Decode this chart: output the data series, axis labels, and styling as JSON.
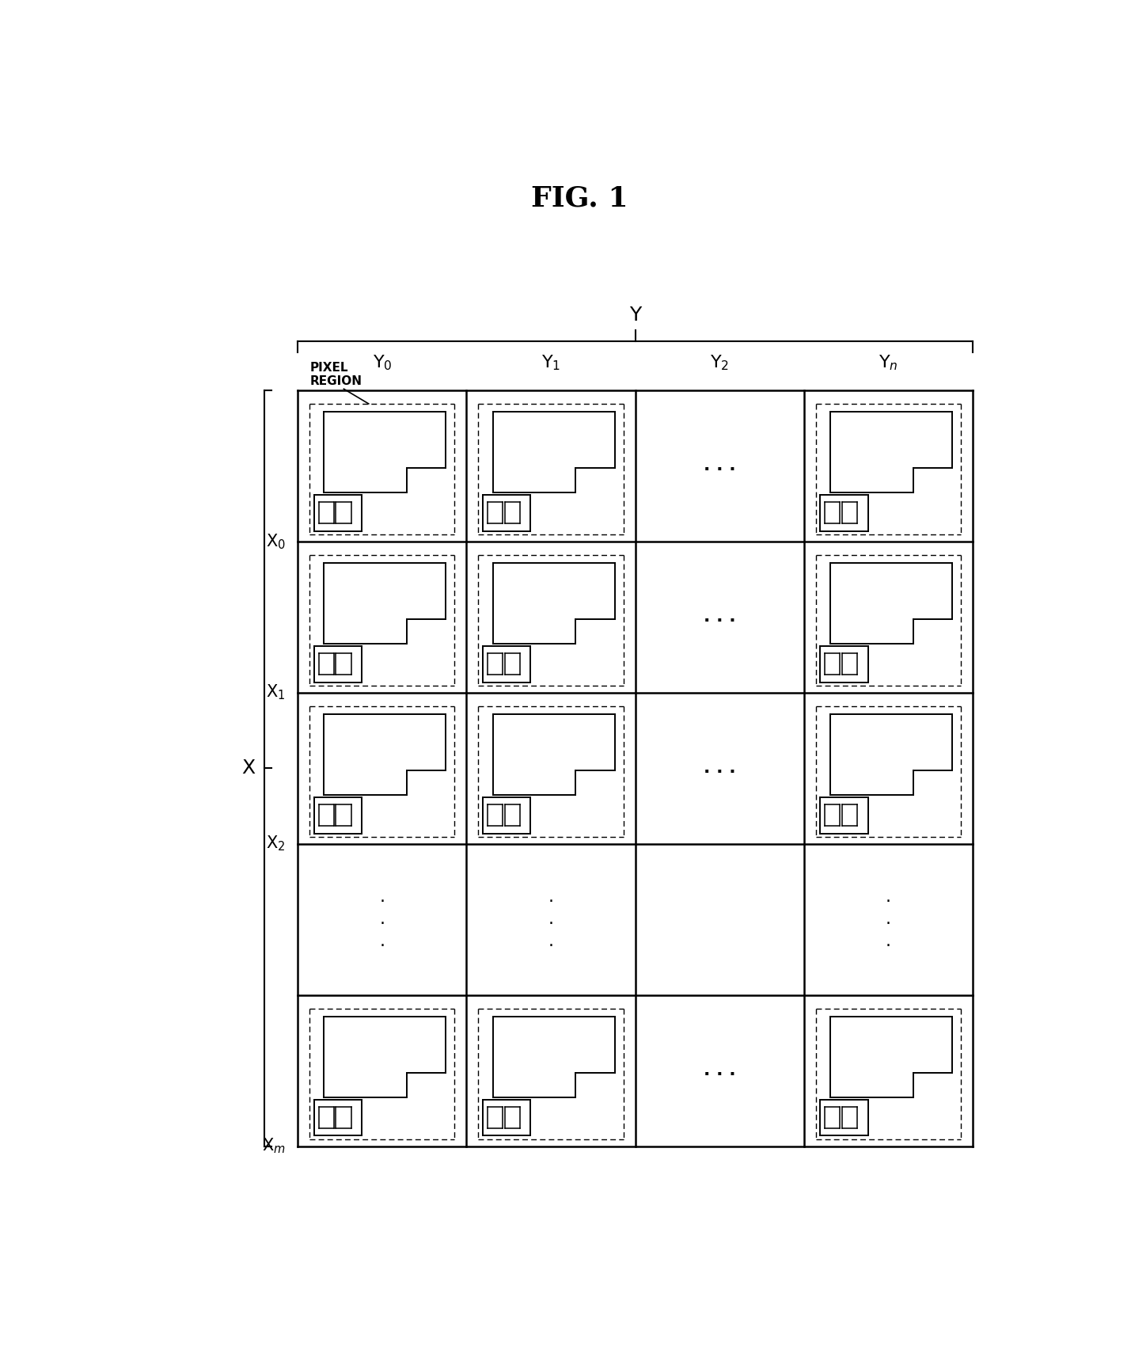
{
  "title": "FIG. 1",
  "title_fontsize": 26,
  "background_color": "#ffffff",
  "fig_width": 14.29,
  "fig_height": 17.0,
  "x_label": "X",
  "y_label": "Y",
  "pixel_region_label": "PIXEL\nREGION",
  "col_labels": [
    "Y$_0$",
    "Y$_1$",
    "Y$_2$",
    "Y$_n$"
  ],
  "row_labels": [
    "X$_0$",
    "X$_1$",
    "X$_2$",
    "X$_m$"
  ],
  "lw_grid": 1.8,
  "lw_cell": 1.4,
  "lw_dash": 1.0,
  "fs_label": 14
}
